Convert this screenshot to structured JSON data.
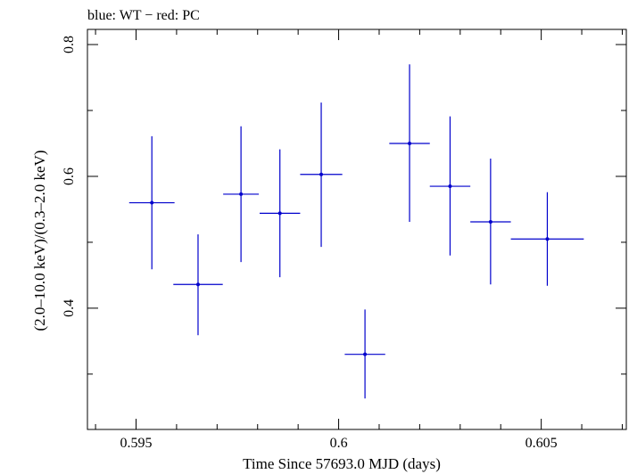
{
  "chart_data": {
    "type": "scatter",
    "title": "blue: WT − red: PC",
    "xlabel": "Time Since 57693.0 MJD (days)",
    "ylabel": "(2.0–10.0 keV)/(0.3–2.0 keV)",
    "xlim": [
      0.5938,
      0.6071
    ],
    "ylim": [
      0.216,
      0.823
    ],
    "x_ticks": [
      {
        "value": 0.595,
        "label": "0.595"
      },
      {
        "value": 0.6,
        "label": "0.6"
      },
      {
        "value": 0.605,
        "label": "0.605"
      }
    ],
    "y_ticks": [
      {
        "value": 0.4,
        "label": "0.4"
      },
      {
        "value": 0.6,
        "label": "0.6"
      },
      {
        "value": 0.8,
        "label": "0.8"
      }
    ],
    "x_minor_step": 0.001,
    "y_minor_step": 0.1,
    "grid": false,
    "series": [
      {
        "name": "WT",
        "color": "#0000cc",
        "points": [
          {
            "x": 0.59539,
            "xerr": 0.00056,
            "y": 0.56,
            "yerr_low": 0.101,
            "yerr_high": 0.101
          },
          {
            "x": 0.59653,
            "xerr": 0.00061,
            "y": 0.436,
            "yerr_low": 0.077,
            "yerr_high": 0.076
          },
          {
            "x": 0.59759,
            "xerr": 0.00044,
            "y": 0.573,
            "yerr_low": 0.103,
            "yerr_high": 0.103
          },
          {
            "x": 0.59855,
            "xerr": 0.0005,
            "y": 0.544,
            "yerr_low": 0.097,
            "yerr_high": 0.097
          },
          {
            "x": 0.59957,
            "xerr": 0.00052,
            "y": 0.603,
            "yerr_low": 0.11,
            "yerr_high": 0.109
          },
          {
            "x": 0.60065,
            "xerr": 0.0005,
            "y": 0.33,
            "yerr_low": 0.067,
            "yerr_high": 0.068
          },
          {
            "x": 0.60175,
            "xerr": 0.0005,
            "y": 0.65,
            "yerr_low": 0.119,
            "yerr_high": 0.12
          },
          {
            "x": 0.60275,
            "xerr": 0.0005,
            "y": 0.585,
            "yerr_low": 0.105,
            "yerr_high": 0.106
          },
          {
            "x": 0.60375,
            "xerr": 0.0005,
            "y": 0.531,
            "yerr_low": 0.095,
            "yerr_high": 0.096
          },
          {
            "x": 0.60515,
            "xerr": 0.0009,
            "y": 0.505,
            "yerr_low": 0.071,
            "yerr_high": 0.071
          }
        ]
      }
    ]
  }
}
